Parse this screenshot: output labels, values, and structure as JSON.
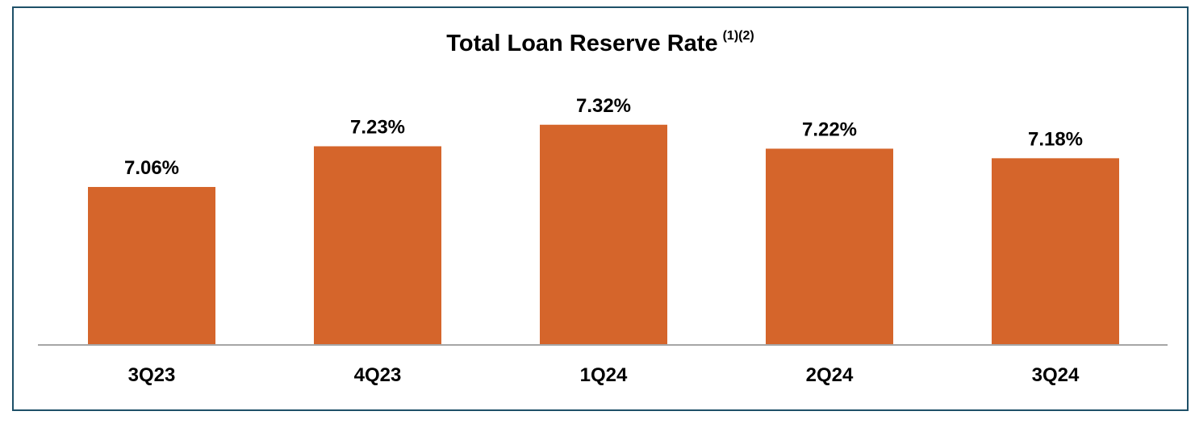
{
  "chart_data": {
    "type": "bar",
    "title": "Total Loan Reserve Rate",
    "title_superscript": "(1)(2)",
    "categories": [
      "3Q23",
      "4Q23",
      "1Q24",
      "2Q24",
      "3Q24"
    ],
    "values": [
      7.06,
      7.23,
      7.32,
      7.22,
      7.18
    ],
    "value_labels": [
      "7.06%",
      "7.23%",
      "7.32%",
      "7.22%",
      "7.18%"
    ],
    "unit": "%",
    "xlabel": "",
    "ylabel": "",
    "y_axis_shown": false,
    "grid": false,
    "legend": "none",
    "bar_color": "#d5652b",
    "axis_color": "#a6a6a6",
    "border_color": "#1e5068"
  }
}
